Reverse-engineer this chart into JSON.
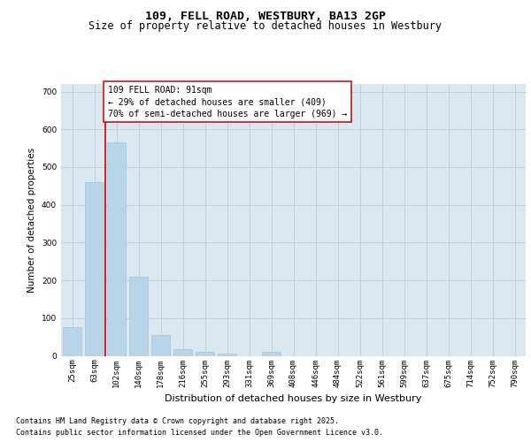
{
  "title_line1": "109, FELL ROAD, WESTBURY, BA13 2GP",
  "title_line2": "Size of property relative to detached houses in Westbury",
  "xlabel": "Distribution of detached houses by size in Westbury",
  "ylabel": "Number of detached properties",
  "categories": [
    "25sqm",
    "63sqm",
    "102sqm",
    "140sqm",
    "178sqm",
    "216sqm",
    "255sqm",
    "293sqm",
    "331sqm",
    "369sqm",
    "408sqm",
    "446sqm",
    "484sqm",
    "522sqm",
    "561sqm",
    "599sqm",
    "637sqm",
    "675sqm",
    "714sqm",
    "752sqm",
    "790sqm"
  ],
  "values": [
    75,
    460,
    565,
    210,
    55,
    18,
    10,
    5,
    0,
    10,
    0,
    0,
    0,
    0,
    0,
    0,
    0,
    0,
    0,
    0,
    0
  ],
  "bar_color": "#b8d4e8",
  "bar_edge_color": "#9bbdd4",
  "grid_color": "#c0d0e0",
  "bg_color": "#dce8f0",
  "vline_x": 1.5,
  "vline_color": "#cc0000",
  "annotation_text_line1": "109 FELL ROAD: 91sqm",
  "annotation_text_line2": "← 29% of detached houses are smaller (409)",
  "annotation_text_line3": "70% of semi-detached houses are larger (969) →",
  "ylim": [
    0,
    720
  ],
  "yticks": [
    0,
    100,
    200,
    300,
    400,
    500,
    600,
    700
  ],
  "footer_line1": "Contains HM Land Registry data © Crown copyright and database right 2025.",
  "footer_line2": "Contains public sector information licensed under the Open Government Licence v3.0.",
  "title_fontsize": 9.5,
  "subtitle_fontsize": 8.5,
  "ylabel_fontsize": 7.5,
  "xlabel_fontsize": 8,
  "tick_fontsize": 6.5,
  "annotation_fontsize": 7,
  "footer_fontsize": 6
}
